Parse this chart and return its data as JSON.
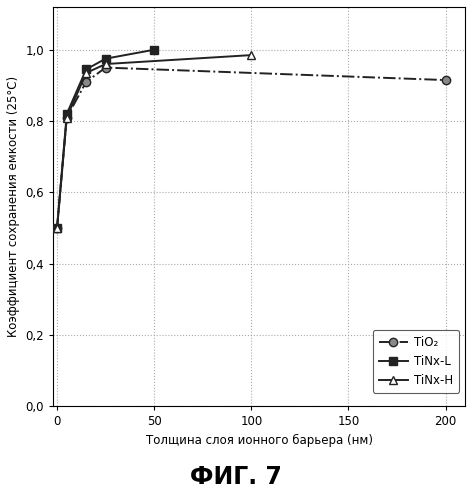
{
  "title_fig": "ФИГ. 7",
  "xlabel": "Толщина слоя ионного барьера (нм)",
  "ylabel": "Коэффициент сохранения емкости (25°С)",
  "xlim": [
    -2,
    210
  ],
  "ylim": [
    0.0,
    1.12
  ],
  "xticks": [
    0,
    50,
    100,
    150,
    200
  ],
  "yticks": [
    0.0,
    0.2,
    0.4,
    0.6,
    0.8,
    1.0
  ],
  "series": [
    {
      "label": "TiO₂",
      "x": [
        0,
        5,
        15,
        25,
        200
      ],
      "y": [
        0.5,
        0.81,
        0.91,
        0.95,
        0.915
      ],
      "marker": "o",
      "linestyle": "-.",
      "color": "#222222",
      "markersize": 6,
      "markerfacecolor": "#888888",
      "markeredgecolor": "#222222",
      "linewidth": 1.4,
      "zorder": 3
    },
    {
      "label": "TiNx-L",
      "x": [
        0,
        5,
        15,
        25,
        50
      ],
      "y": [
        0.5,
        0.82,
        0.945,
        0.975,
        1.0
      ],
      "marker": "s",
      "linestyle": "-",
      "color": "#222222",
      "markersize": 6,
      "markerfacecolor": "#222222",
      "markeredgecolor": "#222222",
      "linewidth": 1.4,
      "zorder": 4
    },
    {
      "label": "TiNx-H",
      "x": [
        0,
        5,
        15,
        25,
        100
      ],
      "y": [
        0.5,
        0.81,
        0.935,
        0.96,
        0.985
      ],
      "marker": "^",
      "linestyle": "-",
      "color": "#222222",
      "markersize": 6,
      "markerfacecolor": "#ffffff",
      "markeredgecolor": "#222222",
      "linewidth": 1.4,
      "zorder": 4
    }
  ],
  "grid_color": "#aaaaaa",
  "grid_linestyle": ":",
  "grid_linewidth": 0.8,
  "background_color": "#ffffff",
  "legend_fontsize": 8.5,
  "axis_fontsize": 8.5,
  "label_fontsize": 8.5,
  "fig_label_fontsize": 17
}
